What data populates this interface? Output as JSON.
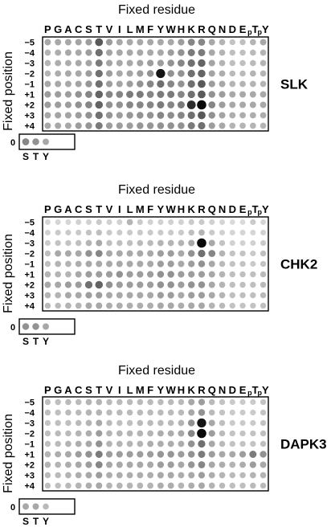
{
  "residues": [
    "P",
    "G",
    "A",
    "C",
    "S",
    "T",
    "V",
    "I",
    "L",
    "M",
    "F",
    "Y",
    "W",
    "H",
    "K",
    "R",
    "Q",
    "N",
    "D",
    "E",
    "pT",
    "pY"
  ],
  "positions": [
    "−5",
    "−4",
    "−3",
    "−2",
    "−1",
    "+1",
    "+2",
    "+3",
    "+4"
  ],
  "zero_label": "0",
  "zero_residues": [
    "S",
    "T",
    "Y"
  ],
  "x_title": "Fixed residue",
  "y_title": "Fixed position",
  "panels": [
    {
      "name": "SLK",
      "intensity": [
        [
          0.3,
          0.3,
          0.3,
          0.32,
          0.35,
          0.65,
          0.35,
          0.3,
          0.3,
          0.3,
          0.3,
          0.3,
          0.3,
          0.35,
          0.45,
          0.45,
          0.3,
          0.25,
          0.18,
          0.2,
          0.25,
          0.3
        ],
        [
          0.25,
          0.28,
          0.3,
          0.3,
          0.35,
          0.55,
          0.32,
          0.3,
          0.3,
          0.3,
          0.3,
          0.3,
          0.35,
          0.4,
          0.5,
          0.5,
          0.3,
          0.25,
          0.2,
          0.2,
          0.22,
          0.25
        ],
        [
          0.25,
          0.28,
          0.28,
          0.3,
          0.32,
          0.5,
          0.32,
          0.3,
          0.3,
          0.32,
          0.35,
          0.35,
          0.4,
          0.45,
          0.55,
          0.6,
          0.32,
          0.25,
          0.2,
          0.2,
          0.22,
          0.25
        ],
        [
          0.25,
          0.28,
          0.3,
          0.3,
          0.35,
          0.55,
          0.35,
          0.3,
          0.32,
          0.35,
          0.4,
          0.95,
          0.4,
          0.4,
          0.55,
          0.6,
          0.32,
          0.28,
          0.22,
          0.22,
          0.25,
          0.25
        ],
        [
          0.3,
          0.3,
          0.3,
          0.32,
          0.38,
          0.55,
          0.35,
          0.32,
          0.35,
          0.4,
          0.45,
          0.55,
          0.45,
          0.4,
          0.55,
          0.65,
          0.35,
          0.3,
          0.25,
          0.25,
          0.25,
          0.25
        ],
        [
          0.35,
          0.35,
          0.35,
          0.4,
          0.45,
          0.6,
          0.45,
          0.45,
          0.5,
          0.5,
          0.45,
          0.5,
          0.5,
          0.45,
          0.55,
          0.65,
          0.4,
          0.35,
          0.3,
          0.3,
          0.3,
          0.3
        ],
        [
          0.35,
          0.35,
          0.35,
          0.4,
          0.45,
          0.6,
          0.4,
          0.4,
          0.45,
          0.45,
          0.45,
          0.5,
          0.45,
          0.5,
          0.85,
          1.0,
          0.45,
          0.35,
          0.3,
          0.3,
          0.3,
          0.3
        ],
        [
          0.3,
          0.32,
          0.32,
          0.35,
          0.4,
          0.55,
          0.38,
          0.35,
          0.38,
          0.4,
          0.4,
          0.45,
          0.42,
          0.45,
          0.55,
          0.65,
          0.4,
          0.32,
          0.28,
          0.28,
          0.28,
          0.28
        ],
        [
          0.3,
          0.3,
          0.3,
          0.35,
          0.38,
          0.5,
          0.35,
          0.35,
          0.35,
          0.38,
          0.38,
          0.4,
          0.4,
          0.4,
          0.5,
          0.55,
          0.35,
          0.3,
          0.25,
          0.25,
          0.25,
          0.25
        ]
      ],
      "zero": [
        0.45,
        0.4,
        0.3
      ]
    },
    {
      "name": "CHK2",
      "intensity": [
        [
          0.1,
          0.1,
          0.1,
          0.12,
          0.12,
          0.15,
          0.12,
          0.12,
          0.25,
          0.15,
          0.12,
          0.12,
          0.12,
          0.12,
          0.15,
          0.15,
          0.12,
          0.1,
          0.08,
          0.08,
          0.15,
          0.1
        ],
        [
          0.12,
          0.15,
          0.15,
          0.15,
          0.18,
          0.2,
          0.15,
          0.15,
          0.15,
          0.15,
          0.15,
          0.15,
          0.15,
          0.15,
          0.2,
          0.25,
          0.15,
          0.12,
          0.1,
          0.1,
          0.1,
          0.12
        ],
        [
          0.15,
          0.18,
          0.18,
          0.2,
          0.25,
          0.3,
          0.2,
          0.2,
          0.2,
          0.22,
          0.22,
          0.25,
          0.25,
          0.25,
          0.3,
          1.0,
          0.3,
          0.18,
          0.12,
          0.12,
          0.12,
          0.15
        ],
        [
          0.2,
          0.3,
          0.3,
          0.3,
          0.4,
          0.45,
          0.3,
          0.3,
          0.3,
          0.3,
          0.3,
          0.35,
          0.35,
          0.3,
          0.4,
          0.55,
          0.45,
          0.25,
          0.18,
          0.18,
          0.15,
          0.2
        ],
        [
          0.2,
          0.25,
          0.25,
          0.28,
          0.3,
          0.3,
          0.3,
          0.3,
          0.3,
          0.3,
          0.3,
          0.35,
          0.35,
          0.3,
          0.35,
          0.4,
          0.3,
          0.22,
          0.18,
          0.18,
          0.15,
          0.18
        ],
        [
          0.25,
          0.25,
          0.25,
          0.3,
          0.35,
          0.35,
          0.35,
          0.4,
          0.35,
          0.35,
          0.35,
          0.4,
          0.4,
          0.35,
          0.35,
          0.35,
          0.3,
          0.25,
          0.2,
          0.2,
          0.2,
          0.22
        ],
        [
          0.3,
          0.3,
          0.35,
          0.35,
          0.55,
          0.6,
          0.4,
          0.35,
          0.35,
          0.35,
          0.35,
          0.4,
          0.4,
          0.35,
          0.4,
          0.4,
          0.3,
          0.25,
          0.2,
          0.2,
          0.2,
          0.22
        ],
        [
          0.25,
          0.25,
          0.3,
          0.3,
          0.35,
          0.35,
          0.3,
          0.3,
          0.3,
          0.3,
          0.3,
          0.35,
          0.35,
          0.3,
          0.35,
          0.35,
          0.3,
          0.25,
          0.2,
          0.2,
          0.2,
          0.22
        ],
        [
          0.22,
          0.22,
          0.25,
          0.25,
          0.3,
          0.3,
          0.28,
          0.28,
          0.28,
          0.28,
          0.28,
          0.3,
          0.3,
          0.28,
          0.3,
          0.3,
          0.25,
          0.22,
          0.18,
          0.18,
          0.18,
          0.2
        ]
      ],
      "zero": [
        0.4,
        0.4,
        0.3
      ]
    },
    {
      "name": "DAPK3",
      "intensity": [
        [
          0.2,
          0.2,
          0.22,
          0.22,
          0.25,
          0.25,
          0.22,
          0.22,
          0.22,
          0.22,
          0.22,
          0.22,
          0.22,
          0.22,
          0.3,
          0.35,
          0.22,
          0.18,
          0.15,
          0.15,
          0.15,
          0.18
        ],
        [
          0.2,
          0.2,
          0.22,
          0.22,
          0.25,
          0.25,
          0.22,
          0.22,
          0.22,
          0.22,
          0.22,
          0.22,
          0.22,
          0.22,
          0.3,
          0.4,
          0.22,
          0.18,
          0.15,
          0.15,
          0.15,
          0.18
        ],
        [
          0.18,
          0.2,
          0.2,
          0.22,
          0.25,
          0.3,
          0.22,
          0.2,
          0.2,
          0.22,
          0.22,
          0.22,
          0.22,
          0.25,
          0.4,
          0.95,
          0.3,
          0.2,
          0.15,
          0.15,
          0.15,
          0.18
        ],
        [
          0.2,
          0.22,
          0.22,
          0.25,
          0.28,
          0.35,
          0.25,
          0.25,
          0.25,
          0.25,
          0.25,
          0.28,
          0.28,
          0.3,
          0.45,
          1.0,
          0.35,
          0.22,
          0.18,
          0.18,
          0.18,
          0.2
        ],
        [
          0.2,
          0.22,
          0.25,
          0.28,
          0.3,
          0.4,
          0.25,
          0.25,
          0.25,
          0.25,
          0.28,
          0.28,
          0.28,
          0.28,
          0.4,
          0.55,
          0.3,
          0.22,
          0.18,
          0.18,
          0.18,
          0.2
        ],
        [
          0.25,
          0.28,
          0.3,
          0.35,
          0.4,
          0.5,
          0.35,
          0.35,
          0.35,
          0.35,
          0.35,
          0.38,
          0.38,
          0.35,
          0.4,
          0.5,
          0.35,
          0.3,
          0.3,
          0.35,
          0.5,
          0.4
        ],
        [
          0.25,
          0.25,
          0.28,
          0.3,
          0.35,
          0.45,
          0.3,
          0.3,
          0.3,
          0.3,
          0.3,
          0.35,
          0.35,
          0.3,
          0.38,
          0.45,
          0.3,
          0.28,
          0.25,
          0.28,
          0.35,
          0.3
        ],
        [
          0.22,
          0.22,
          0.25,
          0.28,
          0.3,
          0.35,
          0.28,
          0.28,
          0.28,
          0.28,
          0.28,
          0.3,
          0.3,
          0.28,
          0.3,
          0.35,
          0.28,
          0.25,
          0.22,
          0.22,
          0.25,
          0.25
        ],
        [
          0.2,
          0.2,
          0.22,
          0.25,
          0.28,
          0.3,
          0.25,
          0.25,
          0.25,
          0.25,
          0.25,
          0.28,
          0.28,
          0.25,
          0.28,
          0.3,
          0.25,
          0.22,
          0.2,
          0.2,
          0.22,
          0.22
        ]
      ],
      "zero": [
        0.3,
        0.3,
        0.22
      ]
    }
  ]
}
